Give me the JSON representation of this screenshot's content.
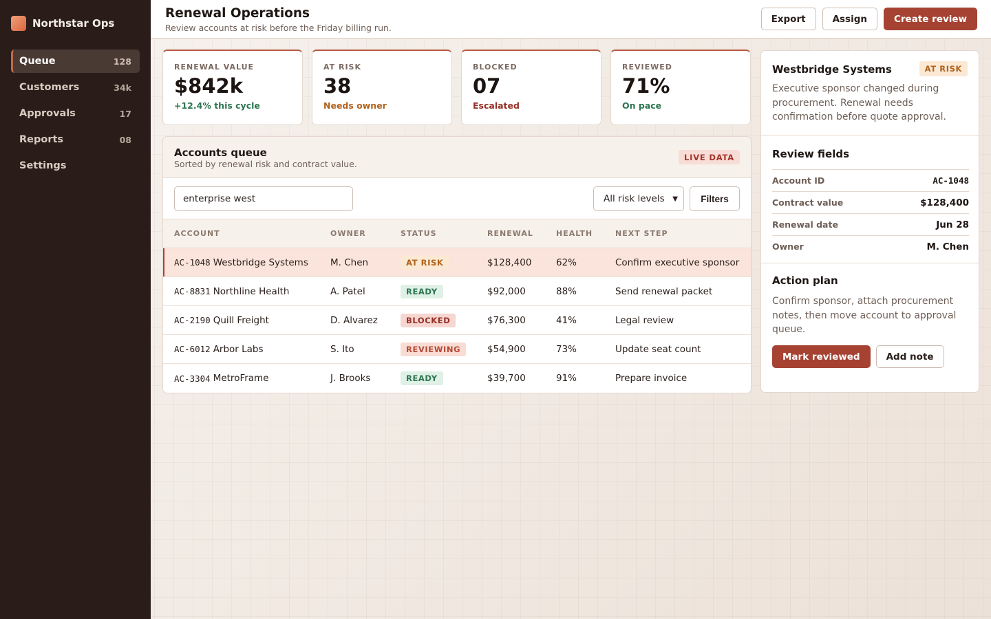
{
  "brand": {
    "name": "Northstar Ops"
  },
  "nav": [
    {
      "label": "Queue",
      "count": "128",
      "active": true
    },
    {
      "label": "Customers",
      "count": "34k"
    },
    {
      "label": "Approvals",
      "count": "17"
    },
    {
      "label": "Reports",
      "count": "08"
    },
    {
      "label": "Settings",
      "count": ""
    }
  ],
  "header": {
    "title": "Renewal Operations",
    "subtitle": "Review accounts at risk before the Friday billing run.",
    "export_label": "Export",
    "assign_label": "Assign",
    "create_label": "Create review"
  },
  "kpis": [
    {
      "label": "RENEWAL VALUE",
      "value": "$842k",
      "note": "+12.4% this cycle",
      "note_color": "#2c7550"
    },
    {
      "label": "AT RISK",
      "value": "38",
      "note": "Needs owner",
      "note_color": "#b0621b"
    },
    {
      "label": "BLOCKED",
      "value": "07",
      "note": "Escalated",
      "note_color": "#962f27"
    },
    {
      "label": "REVIEWED",
      "value": "71%",
      "note": "On pace",
      "note_color": "#2c7550"
    }
  ],
  "queue": {
    "title": "Accounts queue",
    "subtitle": "Sorted by renewal risk and contract value.",
    "live_badge": "LIVE DATA",
    "search_value": "enterprise west",
    "risk_filter": "All risk levels",
    "filters_label": "Filters",
    "columns": [
      "ACCOUNT",
      "OWNER",
      "STATUS",
      "RENEWAL",
      "HEALTH",
      "NEXT STEP"
    ],
    "rows": [
      {
        "id": "AC-1048",
        "name": "Westbridge Systems",
        "owner": "M. Chen",
        "status": "AT RISK",
        "status_type": "atrisk",
        "renewal": "$128,400",
        "health": "62%",
        "next": "Confirm executive sponsor",
        "selected": true
      },
      {
        "id": "AC-8831",
        "name": "Northline Health",
        "owner": "A. Patel",
        "status": "READY",
        "status_type": "ready",
        "renewal": "$92,000",
        "health": "88%",
        "next": "Send renewal packet"
      },
      {
        "id": "AC-2190",
        "name": "Quill Freight",
        "owner": "D. Alvarez",
        "status": "BLOCKED",
        "status_type": "blocked",
        "renewal": "$76,300",
        "health": "41%",
        "next": "Legal review"
      },
      {
        "id": "AC-6012",
        "name": "Arbor Labs",
        "owner": "S. Ito",
        "status": "REVIEWING",
        "status_type": "reviewing",
        "renewal": "$54,900",
        "health": "73%",
        "next": "Update seat count"
      },
      {
        "id": "AC-3304",
        "name": "MetroFrame",
        "owner": "J. Brooks",
        "status": "READY",
        "status_type": "ready",
        "renewal": "$39,700",
        "health": "91%",
        "next": "Prepare invoice"
      }
    ]
  },
  "detail": {
    "title": "Westbridge Systems",
    "badge": "AT RISK",
    "description": "Executive sponsor changed during procurement. Renewal needs confirmation before quote approval.",
    "fields_heading": "Review fields",
    "fields": [
      {
        "label": "Account ID",
        "value": "AC-1048",
        "mono": true
      },
      {
        "label": "Contract value",
        "value": "$128,400"
      },
      {
        "label": "Renewal date",
        "value": "Jun 28"
      },
      {
        "label": "Owner",
        "value": "M. Chen"
      }
    ],
    "plan_heading": "Action plan",
    "plan_text": "Confirm sponsor, attach procurement notes, then move account to approval queue.",
    "mark_label": "Mark reviewed",
    "note_label": "Add note"
  },
  "colors": {
    "accent": "#a54232",
    "sidebar": "#2a1d19"
  }
}
